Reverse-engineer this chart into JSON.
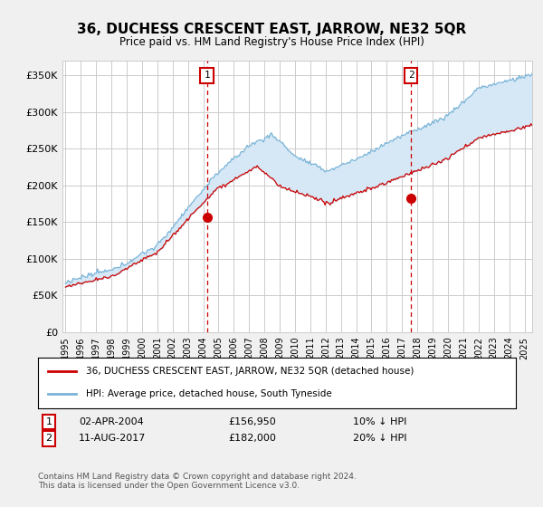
{
  "title": "36, DUCHESS CRESCENT EAST, JARROW, NE32 5QR",
  "subtitle": "Price paid vs. HM Land Registry's House Price Index (HPI)",
  "ylabel_ticks": [
    "£0",
    "£50K",
    "£100K",
    "£150K",
    "£200K",
    "£250K",
    "£300K",
    "£350K"
  ],
  "ytick_vals": [
    0,
    50000,
    100000,
    150000,
    200000,
    250000,
    300000,
    350000
  ],
  "ylim": [
    0,
    370000
  ],
  "xlim_start": 1994.8,
  "xlim_end": 2025.5,
  "hpi_color": "#7ab4d8",
  "price_color": "#cc0000",
  "fill_color": "#d6e8f5",
  "marker1_x": 2004.25,
  "marker1_y": 156950,
  "marker2_x": 2017.58,
  "marker2_y": 182000,
  "legend_line1": "36, DUCHESS CRESCENT EAST, JARROW, NE32 5QR (detached house)",
  "legend_line2": "HPI: Average price, detached house, South Tyneside",
  "annot1_num": "1",
  "annot1_date": "02-APR-2004",
  "annot1_price": "£156,950",
  "annot1_pct": "10% ↓ HPI",
  "annot2_num": "2",
  "annot2_date": "11-AUG-2017",
  "annot2_price": "£182,000",
  "annot2_pct": "20% ↓ HPI",
  "footnote": "Contains HM Land Registry data © Crown copyright and database right 2024.\nThis data is licensed under the Open Government Licence v3.0.",
  "bg_color": "#f0f0f0",
  "plot_bg_color": "#ffffff",
  "grid_color": "#cccccc"
}
